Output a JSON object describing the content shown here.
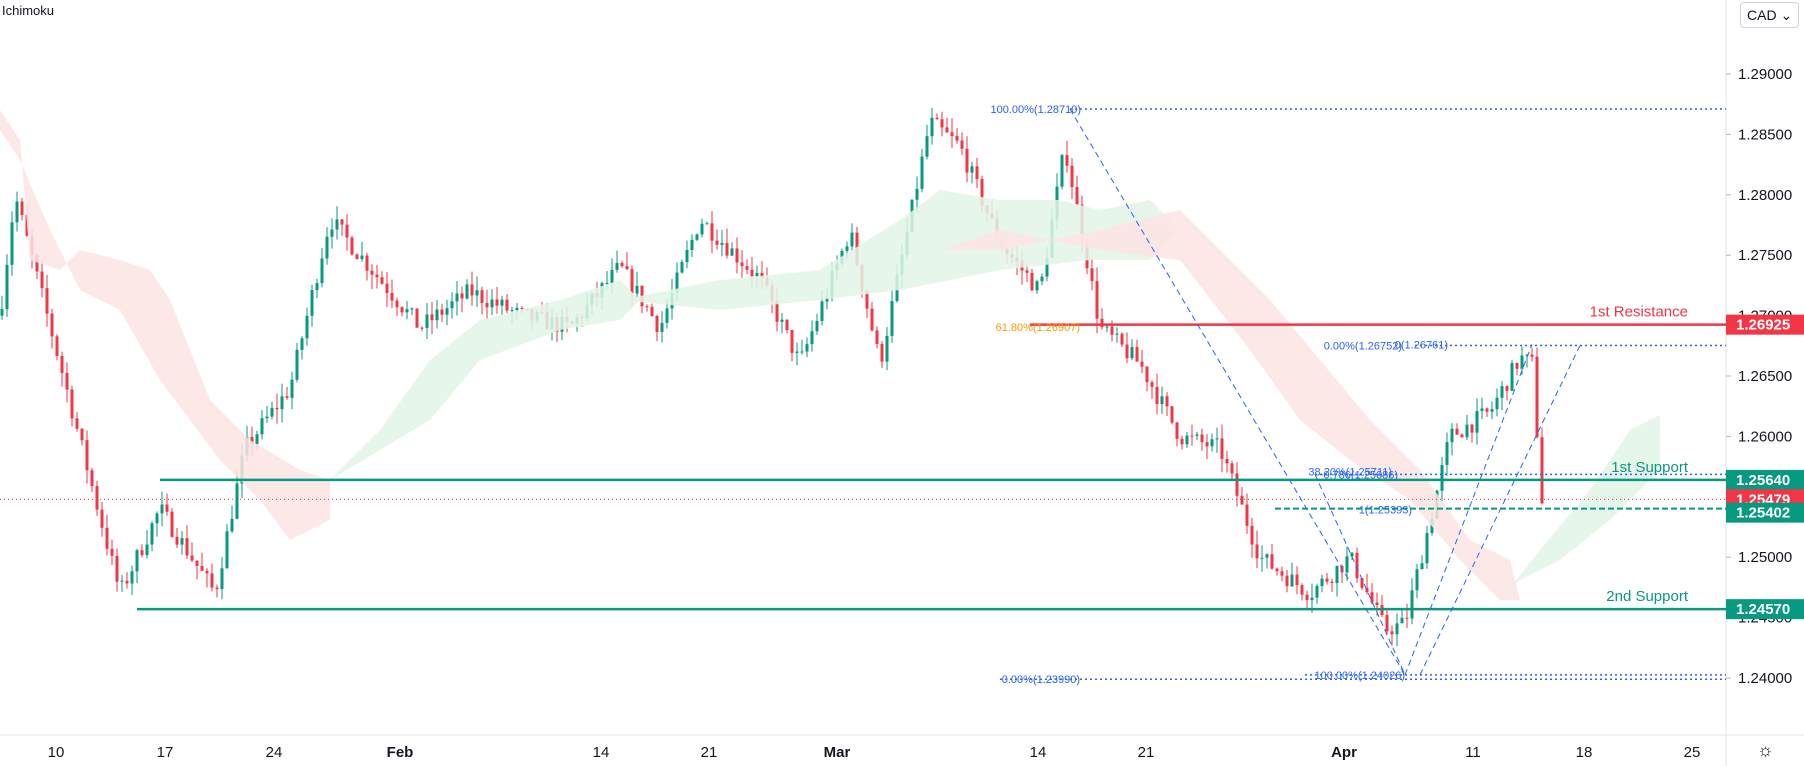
{
  "indicator": "Ichimoku",
  "currency": "CAD",
  "currency_chevron": "⌄",
  "settings_icon": "☼",
  "colors": {
    "up": "#089981",
    "down": "#f23645",
    "resistance": "#f23645",
    "support": "#089981",
    "fib": "#2962ff",
    "fib_orange": "#ff9800",
    "cloud_bull": "#e3f4e8",
    "cloud_bear": "#fde4e4"
  },
  "chart_data": {
    "type": "candlestick",
    "title": "",
    "y_axis": {
      "range": [
        1.2352,
        1.2942
      ],
      "ticks": [
        "1.24000",
        "1.24500",
        "1.25000",
        "1.25500",
        "1.26000",
        "1.26500",
        "1.27000",
        "1.27500",
        "1.28000",
        "1.28500",
        "1.29000"
      ]
    },
    "x_axis": {
      "ticks": [
        "10",
        "17",
        "24",
        "Feb",
        "14",
        "21",
        "Mar",
        "14",
        "21",
        "Apr",
        "11",
        "18",
        "25"
      ]
    },
    "levels": [
      {
        "name": "1st Resistance",
        "value": 1.26925,
        "kind": "resistance"
      },
      {
        "name": "1st Support",
        "value": 1.2564,
        "kind": "support"
      },
      {
        "name": "2nd Support",
        "value": 1.2457,
        "kind": "support"
      }
    ],
    "price_badges": [
      {
        "value": "1.26925",
        "kind": "resistance"
      },
      {
        "value": "1.25640",
        "kind": "support"
      },
      {
        "value": "1.25479",
        "kind": "current"
      },
      {
        "value": "1.25402",
        "kind": "support"
      },
      {
        "value": "1.24570",
        "kind": "support"
      }
    ],
    "fib_labels": [
      {
        "text": "100.00%(1.28710)",
        "value": 1.2871
      },
      {
        "text": "61.80%(1.26907)",
        "value": 1.26907
      },
      {
        "text": "0.00%(1.23990)",
        "value": 1.2399
      },
      {
        "text": "0(1.26761)",
        "value": 1.26761
      },
      {
        "text": "0.00%(1.26752)",
        "value": 1.26752
      },
      {
        "text": "0.786(1.25686)",
        "value": 1.25686
      },
      {
        "text": "38.20%(1.25711)",
        "value": 1.25711
      },
      {
        "text": "1(1.25393)",
        "value": 1.25393
      },
      {
        "text": "100.00%(1.24026)",
        "value": 1.24026
      }
    ]
  }
}
